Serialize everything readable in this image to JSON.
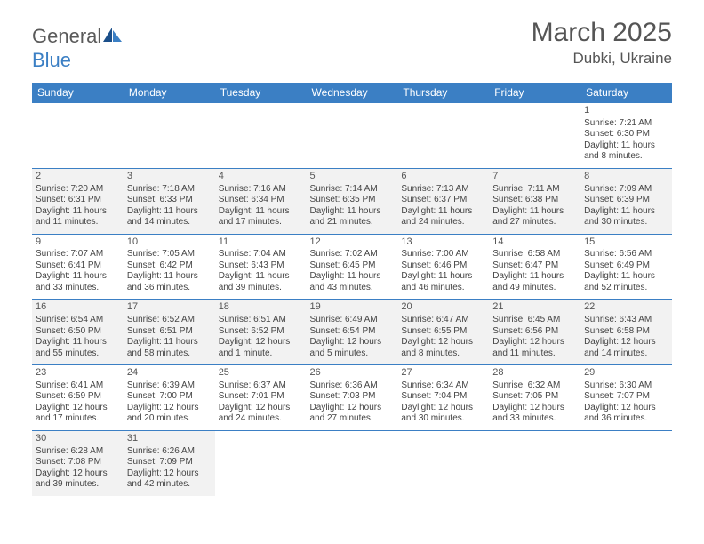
{
  "logo": {
    "general": "General",
    "blue": "Blue"
  },
  "title": "March 2025",
  "location": "Dubki, Ukraine",
  "headers": [
    "Sunday",
    "Monday",
    "Tuesday",
    "Wednesday",
    "Thursday",
    "Friday",
    "Saturday"
  ],
  "colors": {
    "header_bg": "#3b7fc4",
    "row_alt_bg": "#f2f2f2",
    "border": "#3b7fc4",
    "text": "#444444"
  },
  "weeks": [
    [
      null,
      null,
      null,
      null,
      null,
      null,
      {
        "n": "1",
        "sr": "Sunrise: 7:21 AM",
        "ss": "Sunset: 6:30 PM",
        "d1": "Daylight: 11 hours",
        "d2": "and 8 minutes."
      }
    ],
    [
      {
        "n": "2",
        "sr": "Sunrise: 7:20 AM",
        "ss": "Sunset: 6:31 PM",
        "d1": "Daylight: 11 hours",
        "d2": "and 11 minutes."
      },
      {
        "n": "3",
        "sr": "Sunrise: 7:18 AM",
        "ss": "Sunset: 6:33 PM",
        "d1": "Daylight: 11 hours",
        "d2": "and 14 minutes."
      },
      {
        "n": "4",
        "sr": "Sunrise: 7:16 AM",
        "ss": "Sunset: 6:34 PM",
        "d1": "Daylight: 11 hours",
        "d2": "and 17 minutes."
      },
      {
        "n": "5",
        "sr": "Sunrise: 7:14 AM",
        "ss": "Sunset: 6:35 PM",
        "d1": "Daylight: 11 hours",
        "d2": "and 21 minutes."
      },
      {
        "n": "6",
        "sr": "Sunrise: 7:13 AM",
        "ss": "Sunset: 6:37 PM",
        "d1": "Daylight: 11 hours",
        "d2": "and 24 minutes."
      },
      {
        "n": "7",
        "sr": "Sunrise: 7:11 AM",
        "ss": "Sunset: 6:38 PM",
        "d1": "Daylight: 11 hours",
        "d2": "and 27 minutes."
      },
      {
        "n": "8",
        "sr": "Sunrise: 7:09 AM",
        "ss": "Sunset: 6:39 PM",
        "d1": "Daylight: 11 hours",
        "d2": "and 30 minutes."
      }
    ],
    [
      {
        "n": "9",
        "sr": "Sunrise: 7:07 AM",
        "ss": "Sunset: 6:41 PM",
        "d1": "Daylight: 11 hours",
        "d2": "and 33 minutes."
      },
      {
        "n": "10",
        "sr": "Sunrise: 7:05 AM",
        "ss": "Sunset: 6:42 PM",
        "d1": "Daylight: 11 hours",
        "d2": "and 36 minutes."
      },
      {
        "n": "11",
        "sr": "Sunrise: 7:04 AM",
        "ss": "Sunset: 6:43 PM",
        "d1": "Daylight: 11 hours",
        "d2": "and 39 minutes."
      },
      {
        "n": "12",
        "sr": "Sunrise: 7:02 AM",
        "ss": "Sunset: 6:45 PM",
        "d1": "Daylight: 11 hours",
        "d2": "and 43 minutes."
      },
      {
        "n": "13",
        "sr": "Sunrise: 7:00 AM",
        "ss": "Sunset: 6:46 PM",
        "d1": "Daylight: 11 hours",
        "d2": "and 46 minutes."
      },
      {
        "n": "14",
        "sr": "Sunrise: 6:58 AM",
        "ss": "Sunset: 6:47 PM",
        "d1": "Daylight: 11 hours",
        "d2": "and 49 minutes."
      },
      {
        "n": "15",
        "sr": "Sunrise: 6:56 AM",
        "ss": "Sunset: 6:49 PM",
        "d1": "Daylight: 11 hours",
        "d2": "and 52 minutes."
      }
    ],
    [
      {
        "n": "16",
        "sr": "Sunrise: 6:54 AM",
        "ss": "Sunset: 6:50 PM",
        "d1": "Daylight: 11 hours",
        "d2": "and 55 minutes."
      },
      {
        "n": "17",
        "sr": "Sunrise: 6:52 AM",
        "ss": "Sunset: 6:51 PM",
        "d1": "Daylight: 11 hours",
        "d2": "and 58 minutes."
      },
      {
        "n": "18",
        "sr": "Sunrise: 6:51 AM",
        "ss": "Sunset: 6:52 PM",
        "d1": "Daylight: 12 hours",
        "d2": "and 1 minute."
      },
      {
        "n": "19",
        "sr": "Sunrise: 6:49 AM",
        "ss": "Sunset: 6:54 PM",
        "d1": "Daylight: 12 hours",
        "d2": "and 5 minutes."
      },
      {
        "n": "20",
        "sr": "Sunrise: 6:47 AM",
        "ss": "Sunset: 6:55 PM",
        "d1": "Daylight: 12 hours",
        "d2": "and 8 minutes."
      },
      {
        "n": "21",
        "sr": "Sunrise: 6:45 AM",
        "ss": "Sunset: 6:56 PM",
        "d1": "Daylight: 12 hours",
        "d2": "and 11 minutes."
      },
      {
        "n": "22",
        "sr": "Sunrise: 6:43 AM",
        "ss": "Sunset: 6:58 PM",
        "d1": "Daylight: 12 hours",
        "d2": "and 14 minutes."
      }
    ],
    [
      {
        "n": "23",
        "sr": "Sunrise: 6:41 AM",
        "ss": "Sunset: 6:59 PM",
        "d1": "Daylight: 12 hours",
        "d2": "and 17 minutes."
      },
      {
        "n": "24",
        "sr": "Sunrise: 6:39 AM",
        "ss": "Sunset: 7:00 PM",
        "d1": "Daylight: 12 hours",
        "d2": "and 20 minutes."
      },
      {
        "n": "25",
        "sr": "Sunrise: 6:37 AM",
        "ss": "Sunset: 7:01 PM",
        "d1": "Daylight: 12 hours",
        "d2": "and 24 minutes."
      },
      {
        "n": "26",
        "sr": "Sunrise: 6:36 AM",
        "ss": "Sunset: 7:03 PM",
        "d1": "Daylight: 12 hours",
        "d2": "and 27 minutes."
      },
      {
        "n": "27",
        "sr": "Sunrise: 6:34 AM",
        "ss": "Sunset: 7:04 PM",
        "d1": "Daylight: 12 hours",
        "d2": "and 30 minutes."
      },
      {
        "n": "28",
        "sr": "Sunrise: 6:32 AM",
        "ss": "Sunset: 7:05 PM",
        "d1": "Daylight: 12 hours",
        "d2": "and 33 minutes."
      },
      {
        "n": "29",
        "sr": "Sunrise: 6:30 AM",
        "ss": "Sunset: 7:07 PM",
        "d1": "Daylight: 12 hours",
        "d2": "and 36 minutes."
      }
    ],
    [
      {
        "n": "30",
        "sr": "Sunrise: 6:28 AM",
        "ss": "Sunset: 7:08 PM",
        "d1": "Daylight: 12 hours",
        "d2": "and 39 minutes."
      },
      {
        "n": "31",
        "sr": "Sunrise: 6:26 AM",
        "ss": "Sunset: 7:09 PM",
        "d1": "Daylight: 12 hours",
        "d2": "and 42 minutes."
      },
      null,
      null,
      null,
      null,
      null
    ]
  ]
}
